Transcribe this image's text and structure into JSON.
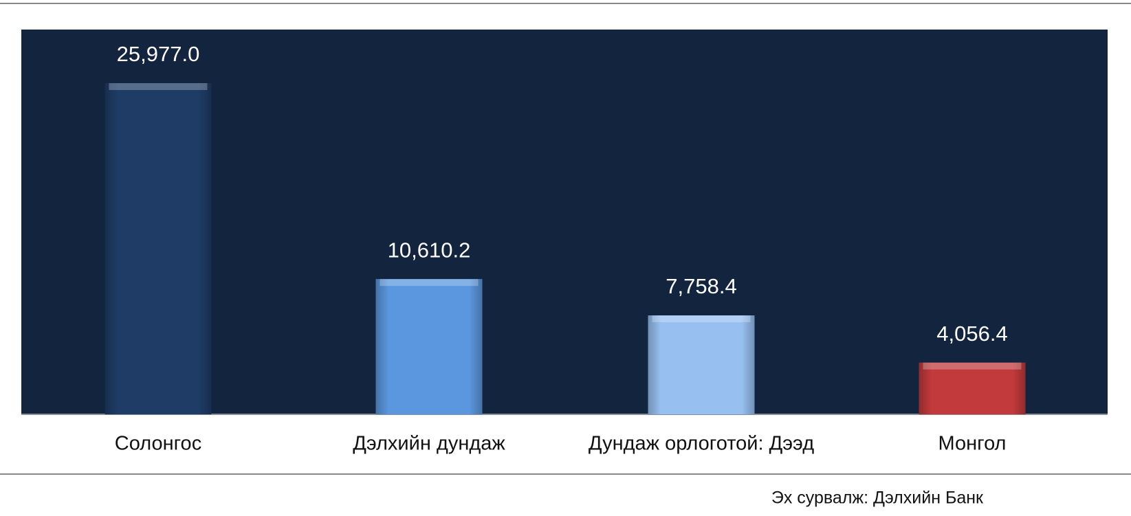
{
  "chart_data": {
    "type": "bar",
    "categories": [
      "Солонгос",
      "Дэлхийн дундаж",
      "Дундаж орлоготой: Дээд",
      "Монгол"
    ],
    "values": [
      25977.0,
      10610.2,
      7758.4,
      4056.4
    ],
    "value_labels": [
      "25,977.0",
      "10,610.2",
      "7,758.4",
      "4,056.4"
    ],
    "colors": [
      "#1f3c66",
      "#5b97de",
      "#97c0f1",
      "#c23a3c"
    ],
    "source": "Эх сурвалж: Дэлхийн Банк"
  }
}
